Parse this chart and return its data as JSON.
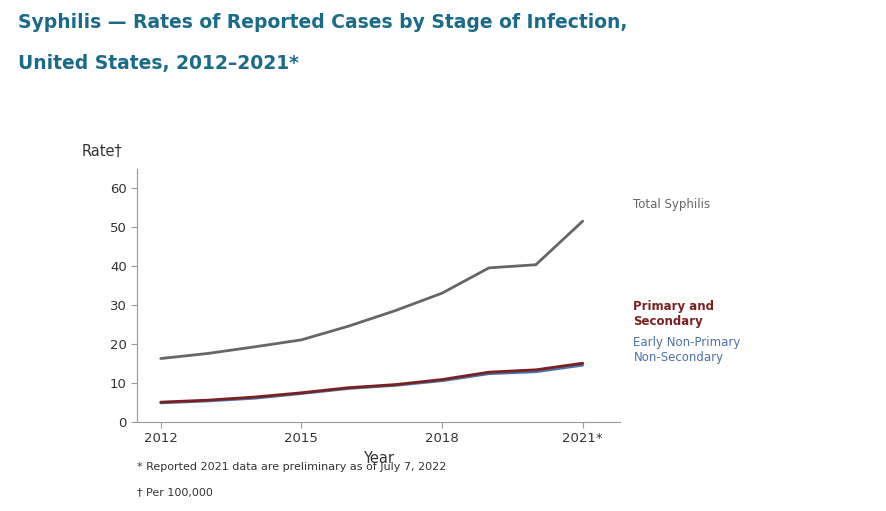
{
  "title_line1": "Syphilis — Rates of Reported Cases by Stage of Infection,",
  "title_line2": "United States, 2012–2021*",
  "title_color": "#1a6b8a",
  "title_fontsize": 13.5,
  "ylabel": "Rate†",
  "xlabel": "Year",
  "background_color": "#ffffff",
  "plot_bg_color": "#ffffff",
  "footnote1": "* Reported 2021 data are preliminary as of July 7, 2022",
  "footnote2": "† Per 100,000",
  "years": [
    2012,
    2013,
    2014,
    2015,
    2016,
    2017,
    2018,
    2019,
    2020,
    2021
  ],
  "total_syphilis": [
    16.2,
    17.5,
    19.2,
    21.0,
    24.5,
    28.5,
    33.0,
    39.5,
    40.3,
    51.5
  ],
  "primary_secondary": [
    5.0,
    5.5,
    6.3,
    7.4,
    8.7,
    9.5,
    10.8,
    12.7,
    13.3,
    15.0
  ],
  "early_non_primary": [
    4.8,
    5.3,
    6.0,
    7.2,
    8.5,
    9.3,
    10.5,
    12.3,
    12.8,
    14.5
  ],
  "total_color": "#666666",
  "primary_color": "#7B2020",
  "early_color": "#4a72a8",
  "ylim": [
    0,
    65
  ],
  "yticks": [
    0,
    10,
    20,
    30,
    40,
    50,
    60
  ],
  "xticks": [
    2012,
    2015,
    2018,
    2021
  ],
  "xlim": [
    2011.5,
    2021.8
  ],
  "line_width": 2.0,
  "label_total": "Total Syphilis",
  "label_primary": "Primary and\nSecondary",
  "label_early": "Early Non-Primary\nNon-Secondary",
  "label_fontsize": 8.5,
  "tick_fontsize": 9.5,
  "axis_label_fontsize": 10.5
}
